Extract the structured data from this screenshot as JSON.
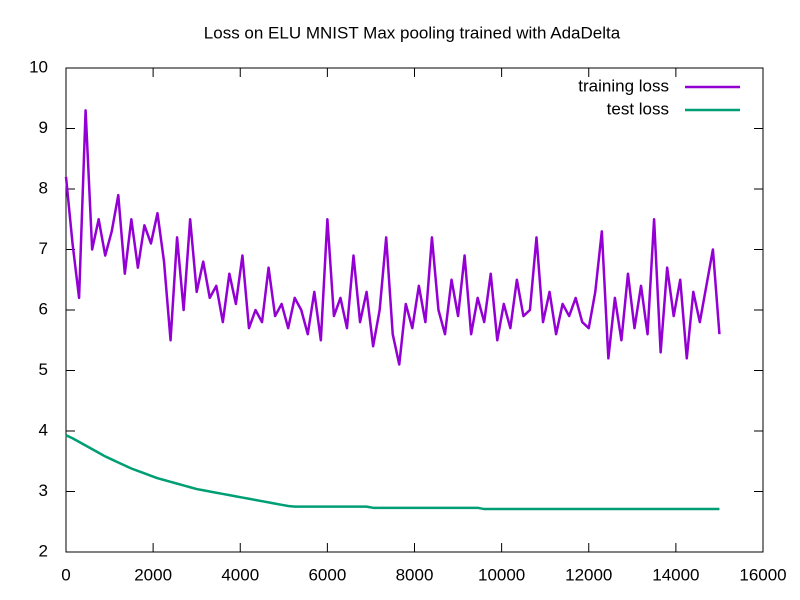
{
  "chart_data": {
    "type": "line",
    "title": "Loss on ELU MNIST Max pooling trained with AdaDelta",
    "x": [
      0,
      150,
      300,
      450,
      600,
      750,
      900,
      1050,
      1200,
      1350,
      1500,
      1650,
      1800,
      1950,
      2100,
      2250,
      2400,
      2550,
      2700,
      2850,
      3000,
      3150,
      3300,
      3450,
      3600,
      3750,
      3900,
      4050,
      4200,
      4350,
      4500,
      4650,
      4800,
      4950,
      5100,
      5250,
      5400,
      5550,
      5700,
      5850,
      6000,
      6150,
      6300,
      6450,
      6600,
      6750,
      6900,
      7050,
      7200,
      7350,
      7500,
      7650,
      7800,
      7950,
      8100,
      8250,
      8400,
      8550,
      8700,
      8850,
      9000,
      9150,
      9300,
      9450,
      9600,
      9750,
      9900,
      10050,
      10200,
      10350,
      10500,
      10650,
      10800,
      10950,
      11100,
      11250,
      11400,
      11550,
      11700,
      11850,
      12000,
      12150,
      12300,
      12450,
      12600,
      12750,
      12900,
      13050,
      13200,
      13350,
      13500,
      13650,
      13800,
      13950,
      14100,
      14250,
      14400,
      14550,
      14700,
      14850,
      15000
    ],
    "series": [
      {
        "name": "training loss",
        "color": "#9400d3",
        "values": [
          8.2,
          7.1,
          6.2,
          9.3,
          7.0,
          7.5,
          6.9,
          7.3,
          7.9,
          6.6,
          7.5,
          6.7,
          7.4,
          7.1,
          7.6,
          6.8,
          5.5,
          7.2,
          6.0,
          7.5,
          6.3,
          6.8,
          6.2,
          6.4,
          5.8,
          6.6,
          6.1,
          6.9,
          5.7,
          6.0,
          5.8,
          6.7,
          5.9,
          6.1,
          5.7,
          6.2,
          6.0,
          5.6,
          6.3,
          5.5,
          7.5,
          5.9,
          6.2,
          5.7,
          6.9,
          5.8,
          6.3,
          5.4,
          6.0,
          7.2,
          5.6,
          5.1,
          6.1,
          5.7,
          6.4,
          5.8,
          7.2,
          6.0,
          5.6,
          6.5,
          5.9,
          6.9,
          5.6,
          6.2,
          5.8,
          6.6,
          5.5,
          6.1,
          5.7,
          6.5,
          5.9,
          6.0,
          7.2,
          5.8,
          6.3,
          5.6,
          6.1,
          5.9,
          6.2,
          5.8,
          5.7,
          6.3,
          7.3,
          5.2,
          6.2,
          5.5,
          6.6,
          5.7,
          6.4,
          5.6,
          7.5,
          5.3,
          6.7,
          5.9,
          6.5,
          5.2,
          6.3,
          5.8,
          6.4,
          7.0,
          5.6
        ]
      },
      {
        "name": "test loss",
        "color": "#009e73",
        "values": [
          3.93,
          3.88,
          3.82,
          3.76,
          3.7,
          3.64,
          3.58,
          3.53,
          3.48,
          3.43,
          3.38,
          3.34,
          3.3,
          3.26,
          3.22,
          3.19,
          3.16,
          3.13,
          3.1,
          3.07,
          3.04,
          3.02,
          3.0,
          2.98,
          2.96,
          2.94,
          2.92,
          2.9,
          2.88,
          2.86,
          2.84,
          2.82,
          2.8,
          2.78,
          2.76,
          2.75,
          2.75,
          2.75,
          2.75,
          2.75,
          2.75,
          2.75,
          2.75,
          2.75,
          2.75,
          2.75,
          2.75,
          2.73,
          2.73,
          2.73,
          2.73,
          2.73,
          2.73,
          2.73,
          2.73,
          2.73,
          2.73,
          2.73,
          2.73,
          2.73,
          2.73,
          2.73,
          2.73,
          2.73,
          2.71,
          2.71,
          2.71,
          2.71,
          2.71,
          2.71,
          2.71,
          2.71,
          2.71,
          2.71,
          2.71,
          2.71,
          2.71,
          2.71,
          2.71,
          2.71,
          2.71,
          2.71,
          2.71,
          2.71,
          2.71,
          2.71,
          2.71,
          2.71,
          2.71,
          2.71,
          2.71,
          2.71,
          2.71,
          2.71,
          2.71,
          2.71,
          2.71,
          2.71,
          2.71,
          2.71,
          2.71
        ]
      }
    ],
    "xlim": [
      0,
      16000
    ],
    "xticks": [
      0,
      2000,
      4000,
      6000,
      8000,
      10000,
      12000,
      14000,
      16000
    ],
    "ylim": [
      2,
      10
    ],
    "yticks": [
      2,
      3,
      4,
      5,
      6,
      7,
      8,
      9,
      10
    ],
    "grid": false,
    "legend": "top-right"
  }
}
